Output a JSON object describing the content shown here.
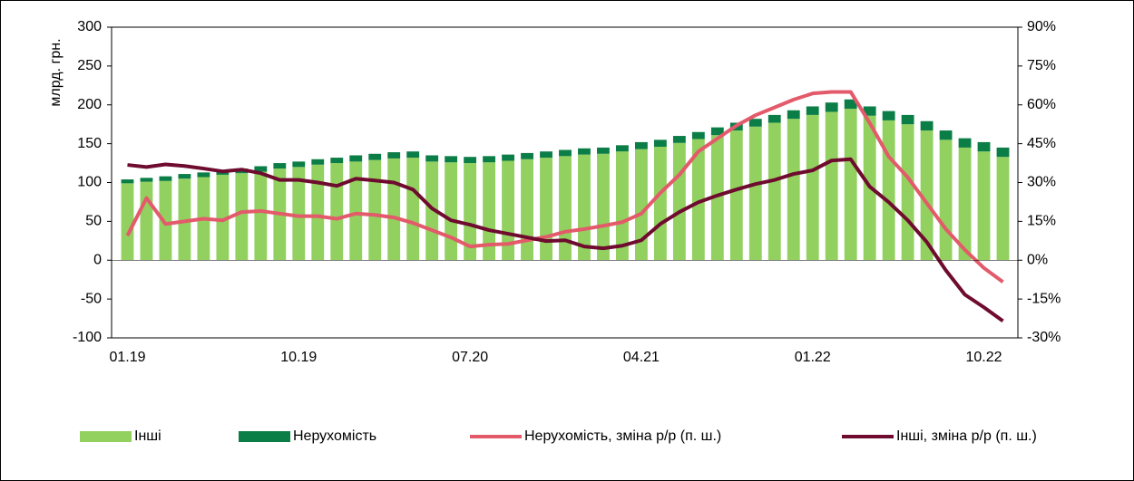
{
  "chart_data": {
    "type": "bar",
    "stacked": true,
    "y_label": "млрд. грн.",
    "categories": [
      "01.19",
      null,
      null,
      null,
      null,
      null,
      null,
      null,
      null,
      "10.19",
      null,
      null,
      null,
      null,
      null,
      null,
      null,
      null,
      "07.20",
      null,
      null,
      null,
      null,
      null,
      null,
      null,
      null,
      "04.21",
      null,
      null,
      null,
      null,
      null,
      null,
      null,
      null,
      "01.22",
      null,
      null,
      null,
      null,
      null,
      null,
      null,
      null,
      "10.22",
      null
    ],
    "ylim": [
      -100,
      300
    ],
    "yticks": [
      -100,
      -50,
      0,
      50,
      100,
      150,
      200,
      250,
      300
    ],
    "y2lim": [
      -30,
      90
    ],
    "y2ticks": [
      {
        "value": -30,
        "label": "-30%"
      },
      {
        "value": -15,
        "label": "-15%"
      },
      {
        "value": 0,
        "label": "0%"
      },
      {
        "value": 15,
        "label": "15%"
      },
      {
        "value": 30,
        "label": "30%"
      },
      {
        "value": 45,
        "label": "45%"
      },
      {
        "value": 60,
        "label": "60%"
      },
      {
        "value": 75,
        "label": "75%"
      },
      {
        "value": 90,
        "label": "90%"
      }
    ],
    "legend": "bottom",
    "series": [
      {
        "name": "Інші",
        "type": "bar",
        "color": "#92d05f",
        "values": [
          99,
          101,
          102,
          105,
          107,
          110,
          112,
          114,
          118,
          120,
          123,
          125,
          127,
          129,
          131,
          132,
          127,
          126,
          125,
          126,
          128,
          130,
          132,
          134,
          136,
          137,
          140,
          143,
          146,
          151,
          156,
          161,
          167,
          172,
          177,
          182,
          187,
          191,
          195,
          186,
          180,
          175,
          167,
          155,
          145,
          140,
          133
        ]
      },
      {
        "name": "Нерухомість",
        "type": "bar",
        "color": "#0b7d46",
        "values": [
          5,
          5,
          6,
          6,
          6,
          6,
          6,
          7,
          7,
          7,
          7,
          7,
          8,
          8,
          8,
          8,
          8,
          8,
          8,
          8,
          8,
          8,
          8,
          8,
          8,
          8,
          8,
          9,
          9,
          9,
          9,
          10,
          10,
          10,
          10,
          11,
          11,
          12,
          12,
          12,
          12,
          12,
          12,
          12,
          12,
          12,
          12
        ]
      },
      {
        "name": "Нерухомість, зміна р/р (п. ш.)",
        "type": "line",
        "axis": "y2",
        "color": "#e35a6b",
        "values": [
          9.5,
          24,
          14,
          15,
          16,
          15.4,
          18.6,
          19,
          18,
          17,
          17,
          16,
          18,
          17.5,
          16.5,
          14.4,
          11.6,
          8.8,
          5.3,
          6,
          6.3,
          7.7,
          9,
          11,
          12,
          13.3,
          14.7,
          18,
          26,
          33,
          42,
          47,
          52,
          56,
          59,
          62,
          64.4,
          65,
          65,
          53,
          40,
          32,
          22,
          12,
          4,
          -3,
          -8.4
        ]
      },
      {
        "name": "Інші, зміна р/р (п. ш.)",
        "type": "line",
        "axis": "y2",
        "color": "#6e0b2e",
        "values": [
          36.8,
          36,
          37,
          36.4,
          35.4,
          34.3,
          35,
          33.6,
          31,
          31,
          30,
          28.7,
          31.5,
          30.8,
          30,
          27.3,
          20,
          15.4,
          13.7,
          11.6,
          10.2,
          8.8,
          7.4,
          7.7,
          5.3,
          4.6,
          5.6,
          7.7,
          14,
          18.6,
          22.4,
          25,
          27.3,
          29.4,
          31,
          33.3,
          34.7,
          38.5,
          39,
          28.4,
          22.4,
          15.4,
          7,
          -3.9,
          -13.3,
          -18.2,
          -23.5
        ]
      }
    ]
  }
}
